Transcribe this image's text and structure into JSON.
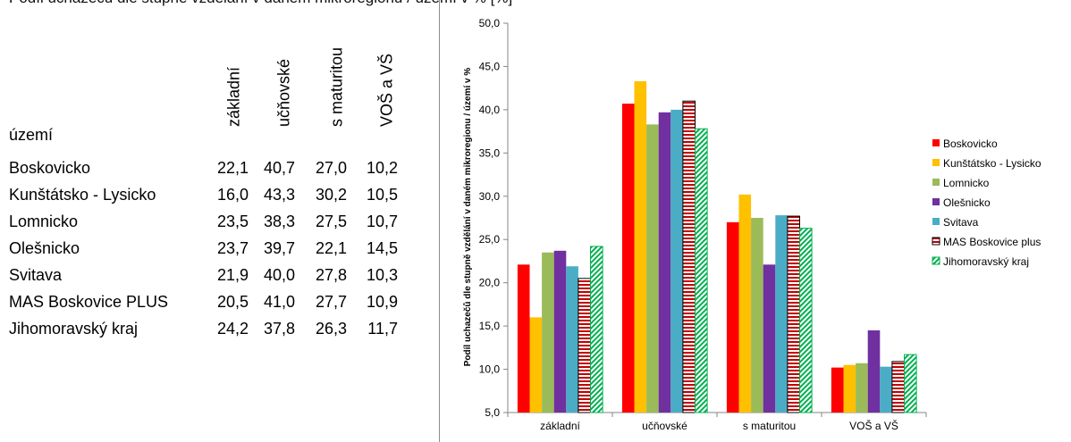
{
  "clipped_heading": "Podíl uchazečů dle stupně vzdělání v daném mikroregionu / území v % [%]",
  "table": {
    "row_header": "území",
    "columns": [
      "základní",
      "učňovské",
      "s maturitou",
      "VOŠ a VŠ"
    ],
    "rows": [
      {
        "name": "Boskovicko",
        "values": [
          "22,1",
          "40,7",
          "27,0",
          "10,2"
        ]
      },
      {
        "name": "Kunštátsko - Lysicko",
        "values": [
          "16,0",
          "43,3",
          "30,2",
          "10,5"
        ]
      },
      {
        "name": "Lomnicko",
        "values": [
          "23,5",
          "38,3",
          "27,5",
          "10,7"
        ]
      },
      {
        "name": "Olešnicko",
        "values": [
          "23,7",
          "39,7",
          "22,1",
          "14,5"
        ]
      },
      {
        "name": "Svitava",
        "values": [
          "21,9",
          "40,0",
          "27,8",
          "10,3"
        ]
      },
      {
        "name": "MAS Boskovice PLUS",
        "values": [
          "20,5",
          "41,0",
          "27,7",
          "10,9"
        ]
      },
      {
        "name": "Jihomoravský kraj",
        "values": [
          "24,2",
          "37,8",
          "26,3",
          "11,7"
        ]
      }
    ]
  },
  "chart_data": {
    "type": "bar",
    "categories": [
      "základní",
      "učňovské",
      "s maturitou",
      "VOŠ a VŠ"
    ],
    "ylabel": "Podíl uchazečů dle stupně vzdělání v daném mikroregionu / území v %",
    "ylim": [
      5,
      50
    ],
    "yticks": [
      "5,0",
      "10,0",
      "15,0",
      "20,0",
      "25,0",
      "30,0",
      "35,0",
      "40,0",
      "45,0",
      "50,0"
    ],
    "grid": false,
    "legend_position": "right",
    "series": [
      {
        "name": "Boskovicko",
        "values": [
          22.1,
          40.7,
          27.0,
          10.2
        ],
        "color": "#ff0000",
        "pattern": "solid"
      },
      {
        "name": "Kunštátsko - Lysicko",
        "values": [
          16.0,
          43.3,
          30.2,
          10.5
        ],
        "color": "#ffc000",
        "pattern": "solid"
      },
      {
        "name": "Lomnicko",
        "values": [
          23.5,
          38.3,
          27.5,
          10.7
        ],
        "color": "#9bbb59",
        "pattern": "solid"
      },
      {
        "name": "Olešnicko",
        "values": [
          23.7,
          39.7,
          22.1,
          14.5
        ],
        "color": "#7030a0",
        "pattern": "solid"
      },
      {
        "name": "Svitava",
        "values": [
          21.9,
          40.0,
          27.8,
          10.3
        ],
        "color": "#4bacc6",
        "pattern": "solid"
      },
      {
        "name": "MAS Boskovice plus",
        "values": [
          20.5,
          41.0,
          27.7,
          10.9
        ],
        "color": "#c00000",
        "pattern": "horizontal-stripes"
      },
      {
        "name": "Jihomoravský kraj",
        "values": [
          24.2,
          37.8,
          26.3,
          11.7
        ],
        "color": "#00b050",
        "pattern": "diagonal-stripes"
      }
    ]
  }
}
